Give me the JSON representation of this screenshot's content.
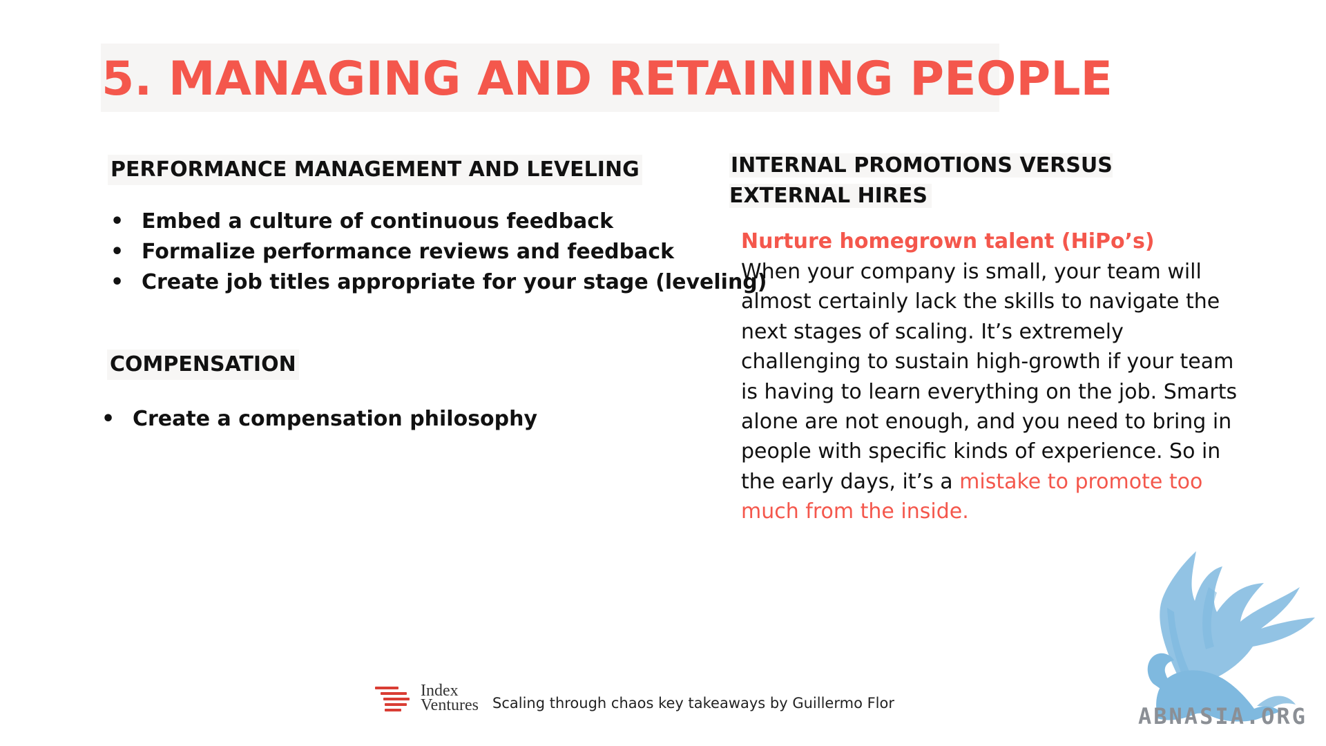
{
  "slide": {
    "title": "5. MANAGING AND RETAINING PEOPLE"
  },
  "performance": {
    "heading": "PERFORMANCE MANAGEMENT AND LEVELING",
    "items": [
      "Embed a culture of continuous feedback",
      "Formalize performance reviews and feedback",
      "Create job titles appropriate for your stage (leveling)"
    ]
  },
  "compensation": {
    "heading": "COMPENSATION",
    "items": [
      "Create a compensation philosophy"
    ]
  },
  "internal": {
    "heading": "INTERNAL PROMOTIONS VERSUS EXTERNAL HIRES",
    "subheading": "Nurture homegrown talent (HiPo’s)",
    "body_text": "When your company is small, your team will almost certainly lack the skills to navigate the next stages of scaling. It’s extremely challenging to sustain high-growth if your team is having to learn everything on the job. Smarts alone are not enough, and you need to bring in people with specific kinds of experience. So in the early days, it’s a ",
    "body_highlight": "mistake to promote too much from the inside."
  },
  "bullet_glyph": "•",
  "footer": {
    "logo_line1": "Index",
    "logo_line2": "Ventures",
    "caption": "Scaling through chaos key takeaways by Guillermo Flor"
  },
  "watermark": {
    "text": "ABNASIA.ORG",
    "icon": "griffin-icon"
  },
  "colors": {
    "accent_red": "#f4574c",
    "logo_red": "#d93d34",
    "watermark_blue": "#7fb9df",
    "watermark_gray": "#8b8f95"
  }
}
